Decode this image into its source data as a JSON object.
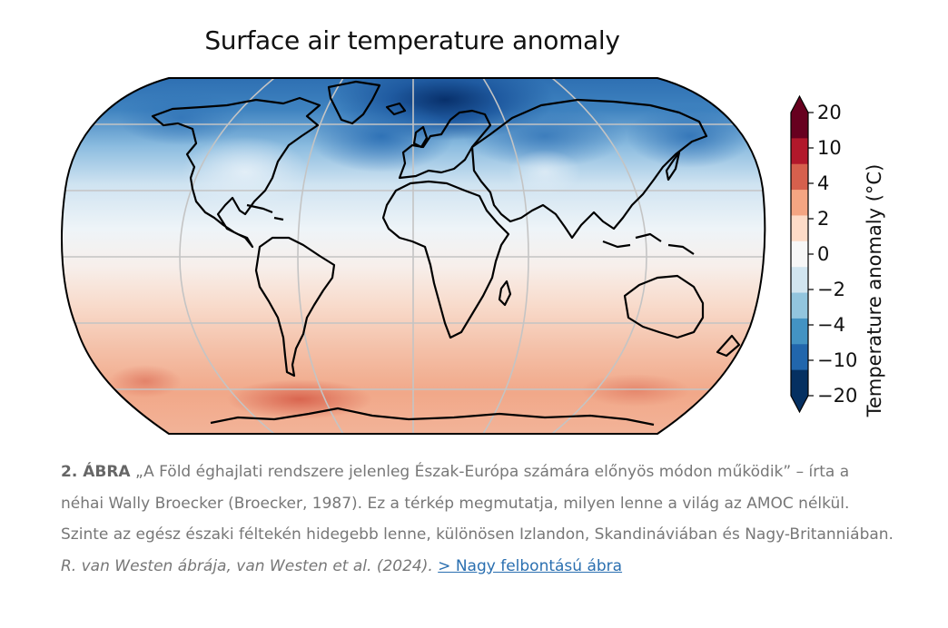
{
  "figure": {
    "title": "Surface air temperature anomaly",
    "colorbar": {
      "label": "Temperature anomaly (°C)",
      "ticks": [
        "20",
        "10",
        "4",
        "2",
        "0",
        "−2",
        "−4",
        "−10",
        "−20"
      ],
      "colors": [
        "#67001f",
        "#b2182b",
        "#d6604d",
        "#f4a582",
        "#fddbc7",
        "#f7f7f7",
        "#d1e5f0",
        "#92c5de",
        "#4393c3",
        "#2166ac",
        "#053061"
      ]
    }
  },
  "caption": {
    "figure_number": "2. ÁBRA",
    "text": " „A Föld éghajlati rendszere jelenleg Észak-Európa számára előnyös módon működik” – írta a néhai Wally Broecker (Broecker, 1987). Ez a térkép megmutatja, milyen lenne a világ az AMOC nélkül. Szinte az egész északi féltekén hidegebb lenne, különösen Izlandon, Skandináviában és Nagy-Britanniában. ",
    "credit": "R. van Westen ábrája, van Westen et al. (2024).",
    "link_text": "> Nagy felbontású ábra"
  }
}
